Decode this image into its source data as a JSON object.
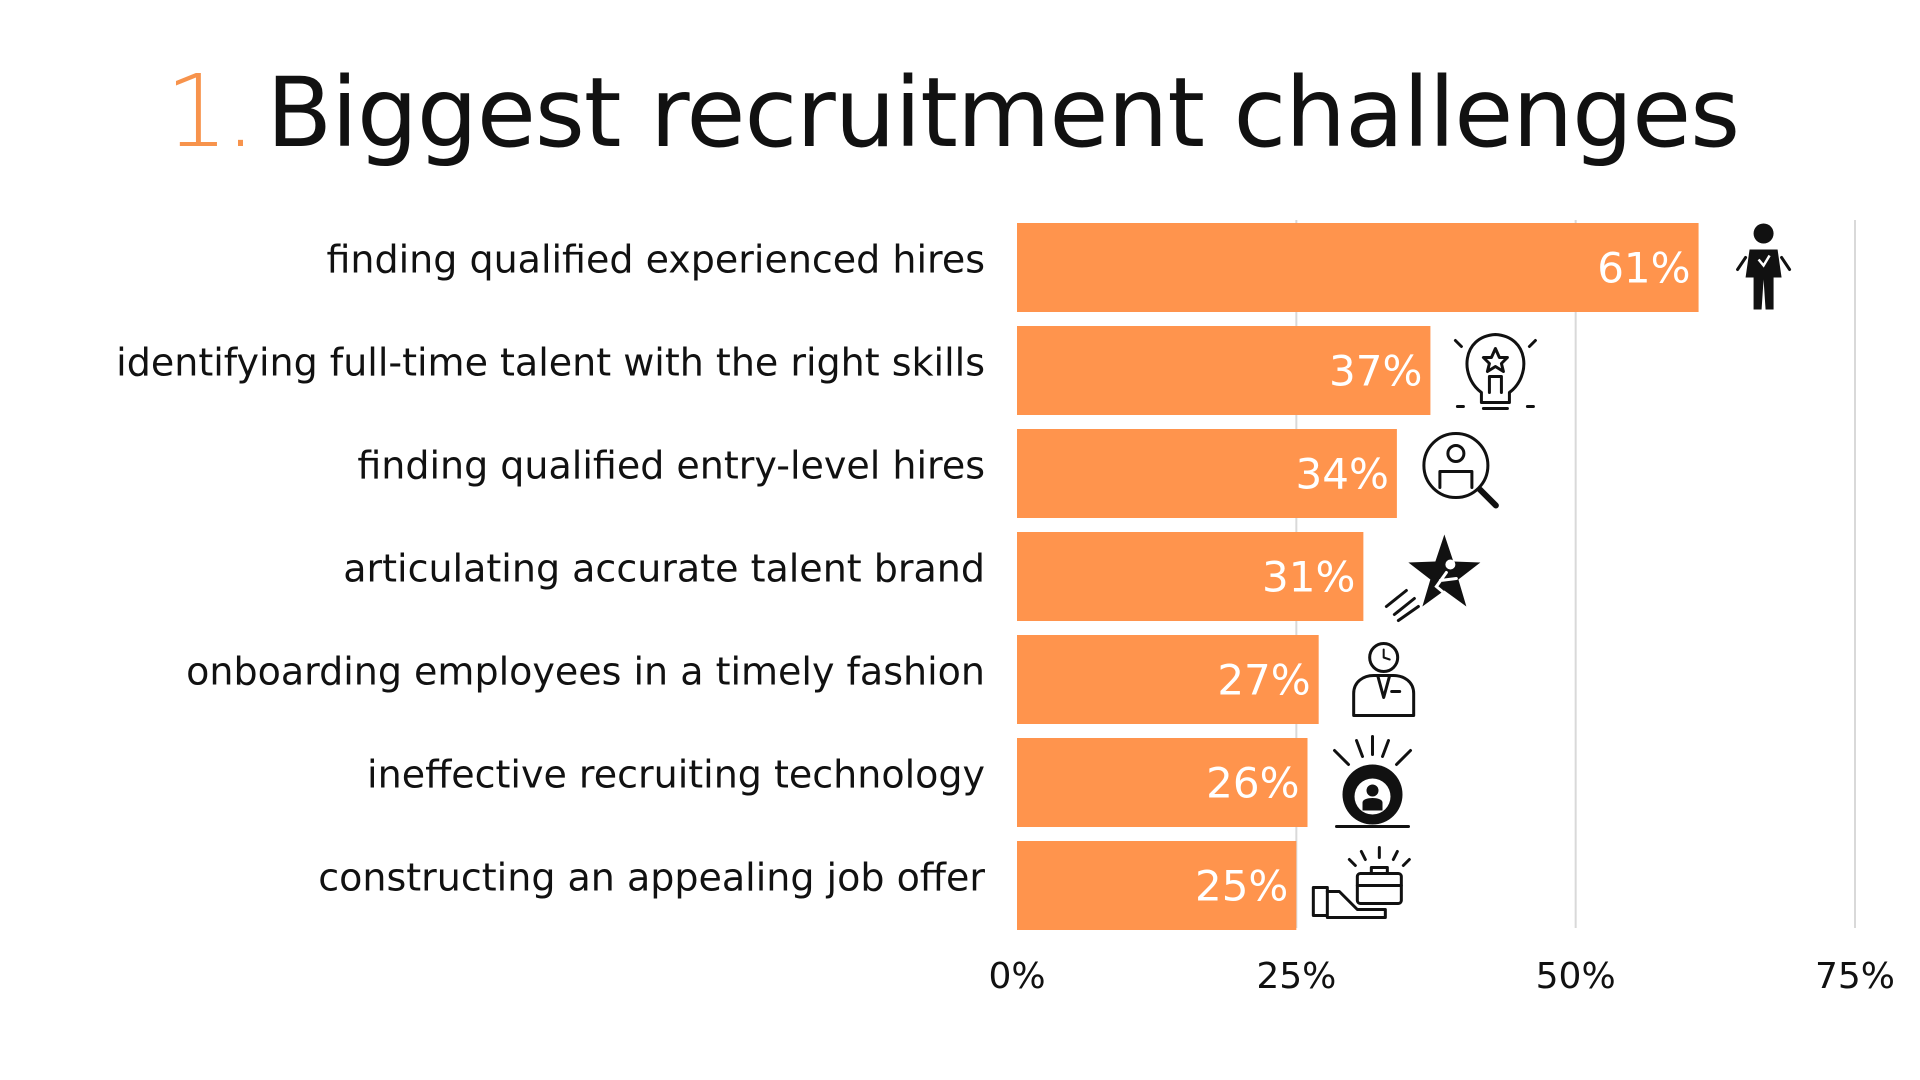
{
  "title": {
    "number": "1.",
    "text": "Biggest recruitment challenges"
  },
  "colors": {
    "accent": "#F7934C",
    "bar": "#FF944D",
    "text": "#111111",
    "grid": "#D9D9D9"
  },
  "chart_data": {
    "type": "bar",
    "orientation": "horizontal",
    "title": "Biggest recruitment challenges",
    "categories": [
      "finding qualified experienced hires",
      "identifying full-time talent with the right skills",
      "finding qualified entry-level hires",
      "articulating accurate talent brand",
      "onboarding employees in a timely fashion",
      "ineffective recruiting technology",
      "constructing an appealing job offer"
    ],
    "values": [
      61,
      37,
      34,
      31,
      27,
      26,
      25
    ],
    "value_labels": [
      "61%",
      "37%",
      "34%",
      "31%",
      "27%",
      "26%",
      "25%"
    ],
    "icons": [
      "businessman-icon",
      "lightbulb-idea-icon",
      "person-search-icon",
      "star-achiever-icon",
      "employee-clock-icon",
      "technology-gear-icon",
      "hand-briefcase-offer-icon"
    ],
    "xlim": [
      0,
      75
    ],
    "xticks": [
      0,
      25,
      50,
      75
    ],
    "xtick_labels": [
      "0%",
      "25%",
      "50%",
      "75%"
    ],
    "grid": true,
    "xlabel": "",
    "ylabel": ""
  }
}
